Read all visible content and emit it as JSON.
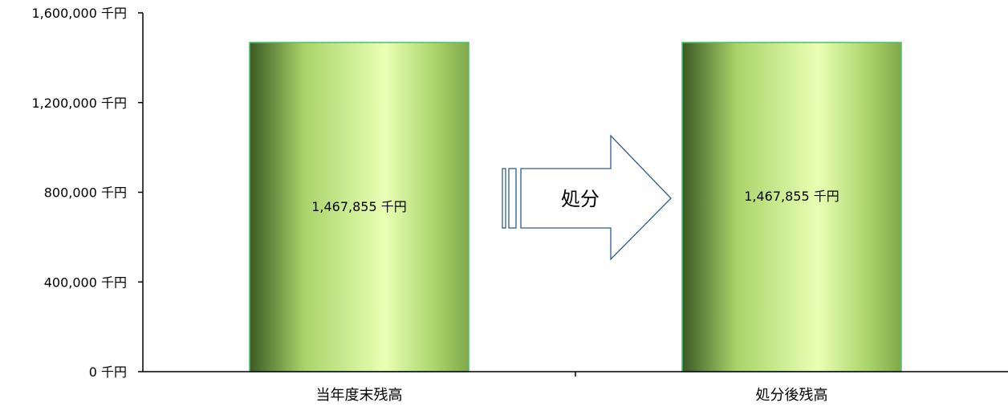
{
  "chart_data": {
    "type": "bar",
    "categories": [
      "当年度末残高",
      "処分後残高"
    ],
    "values": [
      1467855,
      1467855
    ],
    "data_labels": [
      "1,467,855 千円",
      "1,467,855 千円"
    ],
    "y_ticks": [
      0,
      400000,
      800000,
      1200000,
      1600000
    ],
    "y_tick_labels": [
      "0 千円",
      "400,000 千円",
      "800,000 千円",
      "1,200,000 千円",
      "1,600,000 千円"
    ],
    "ylim": [
      0,
      1600000
    ],
    "title": "",
    "xlabel": "",
    "ylabel": "",
    "grid": false,
    "legend": "none"
  },
  "annotation": {
    "arrow_label": "処分"
  },
  "colors": {
    "bar_dark": "#3b5a24",
    "bar_mid": "#a9d46a",
    "bar_light": "#e9ffb4",
    "bar_edge": "#4fbf6f",
    "arrow_stroke": "#2e5d8e",
    "axis": "#000000"
  }
}
